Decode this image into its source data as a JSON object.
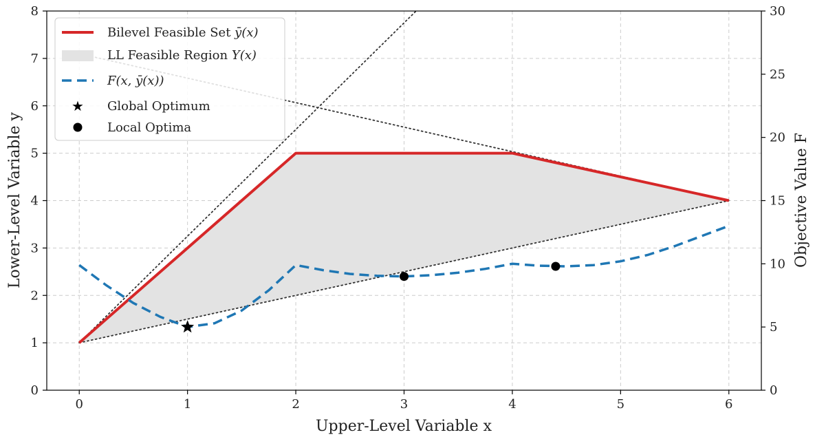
{
  "chart_data": {
    "type": "line",
    "xlabel": "Upper-Level Variable x",
    "ylabel": "Lower-Level Variable y",
    "y2label": "Objective Value F",
    "xlim": [
      -0.3,
      6.3
    ],
    "ylim": [
      0,
      8
    ],
    "y2lim": [
      0,
      30
    ],
    "xticks": [
      0,
      1,
      2,
      3,
      4,
      5,
      6
    ],
    "yticks": [
      0,
      1,
      2,
      3,
      4,
      5,
      6,
      7,
      8
    ],
    "y2ticks": [
      0,
      5,
      10,
      15,
      20,
      25,
      30
    ],
    "grid": true,
    "legend_position": "upper-left",
    "colors": {
      "bilevel": "#d62728",
      "objective": "#1f77b4",
      "region": "#e3e3e3",
      "constraint": "#333333",
      "marker": "#000000"
    },
    "series": [
      {
        "name": "Bilevel Feasible Set ȳ(x)",
        "axis": "left",
        "style": "solid",
        "x": [
          0,
          2,
          4,
          6
        ],
        "y": [
          1,
          5,
          5,
          4
        ]
      },
      {
        "name": "LL Feasible Region Y(x)",
        "axis": "left",
        "style": "fill",
        "x": [
          0,
          2,
          4,
          6,
          4,
          2
        ],
        "y": [
          1,
          5,
          5,
          4,
          3,
          2
        ]
      },
      {
        "name": "F(x, ȳ(x))",
        "axis": "right",
        "style": "dashed",
        "x": [
          0,
          0.25,
          0.5,
          0.75,
          1,
          1.25,
          1.5,
          1.75,
          2,
          2.25,
          2.5,
          2.75,
          3,
          3.25,
          3.5,
          3.75,
          4,
          4.25,
          4.5,
          4.75,
          5,
          5.25,
          5.5,
          5.75,
          6
        ],
        "y": [
          9.9,
          8.3,
          6.9,
          5.8,
          5.0,
          5.3,
          6.3,
          7.9,
          9.9,
          9.5,
          9.2,
          9.05,
          9.0,
          9.1,
          9.3,
          9.6,
          10.0,
          9.85,
          9.8,
          9.9,
          10.2,
          10.7,
          11.4,
          12.2,
          13.0
        ]
      },
      {
        "name": "Global Optimum",
        "axis": "right",
        "style": "star-marker",
        "x": [
          1
        ],
        "y": [
          5.0
        ]
      },
      {
        "name": "Local Optima",
        "axis": "right",
        "style": "dot-marker",
        "x": [
          3,
          4.4
        ],
        "y": [
          9.0,
          9.8
        ]
      }
    ],
    "constraint_lines": [
      {
        "x": [
          0,
          6
        ],
        "y": [
          1,
          4
        ]
      },
      {
        "x": [
          0,
          6
        ],
        "y": [
          7.1,
          4
        ]
      },
      {
        "x": [
          0,
          6
        ],
        "y": [
          1,
          14.5
        ]
      }
    ],
    "legend": {
      "bilevel_prefix": "Bilevel Feasible Set ",
      "bilevel_math": "ȳ(x)",
      "region_prefix": "LL Feasible Region ",
      "region_math": "Y(x)",
      "objective_math": "F(x, ȳ(x))",
      "global": "Global Optimum",
      "local": "Local Optima"
    }
  }
}
